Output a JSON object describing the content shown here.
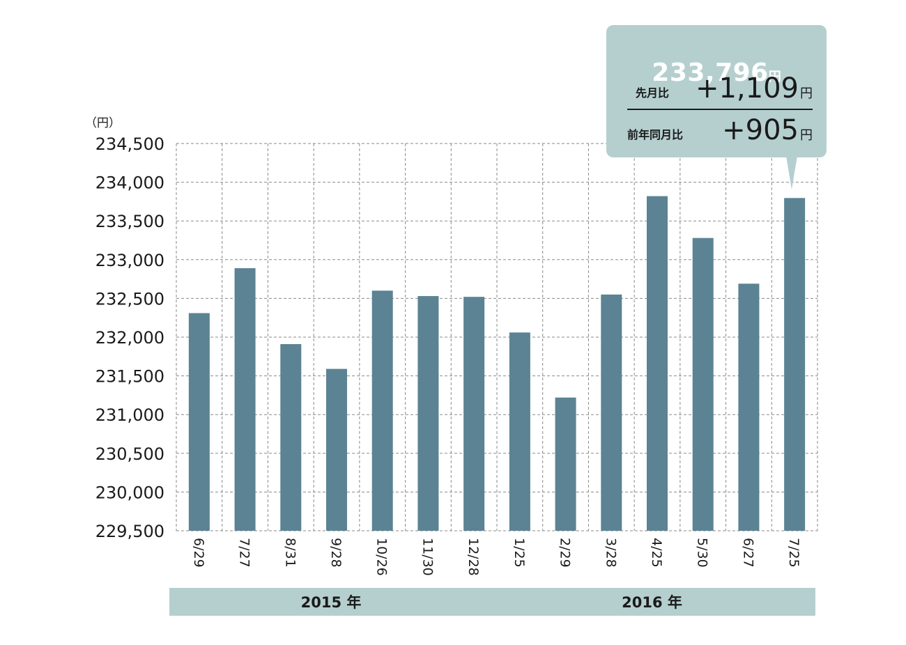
{
  "chart_data": {
    "type": "bar",
    "unit_label": "（円）",
    "categories": [
      "6/29",
      "7/27",
      "8/31",
      "9/28",
      "10/26",
      "11/30",
      "12/28",
      "1/25",
      "2/29",
      "3/28",
      "4/25",
      "5/30",
      "6/27",
      "7/25"
    ],
    "values": [
      232310,
      232890,
      231910,
      231590,
      232600,
      232530,
      232520,
      232060,
      231220,
      232550,
      233820,
      233280,
      232690,
      233796
    ],
    "ylim": [
      229500,
      234500
    ],
    "yticks": [
      229500,
      230000,
      230500,
      231000,
      231500,
      232000,
      232500,
      233000,
      233500,
      234000,
      234500
    ],
    "ytick_labels": [
      "229,500",
      "230,000",
      "230,500",
      "231,000",
      "231,500",
      "232,000",
      "232,500",
      "233,000",
      "233,500",
      "234,000",
      "234,500"
    ],
    "grid": true,
    "year_groups": [
      {
        "label": "2015 年",
        "count": 7
      },
      {
        "label": "2016 年",
        "count": 7
      }
    ],
    "bar_color": "#5b8393",
    "group_band_color": "#b5cfcf"
  },
  "callout": {
    "total": "233,796",
    "total_unit": "円",
    "mom_label": "先月比",
    "mom_value": "+1,109",
    "mom_unit": "円",
    "yoy_label": "前年同月比",
    "yoy_value": "+905",
    "yoy_unit": "円",
    "color": "#b5cfcf"
  }
}
